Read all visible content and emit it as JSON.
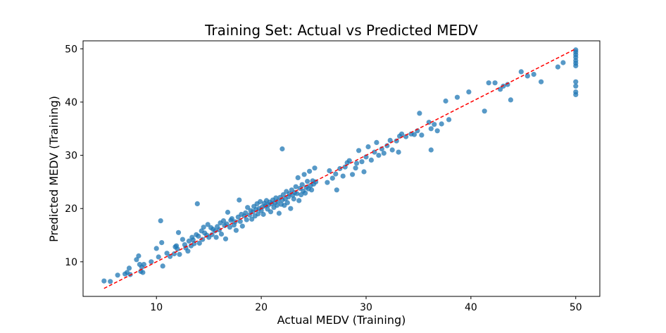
{
  "chart_data": {
    "type": "scatter",
    "title": "Training Set: Actual vs Predicted MEDV",
    "xlabel": "Actual MEDV (Training)",
    "ylabel": "Predicted MEDV (Training)",
    "xlim": [
      3.0,
      52.3
    ],
    "ylim": [
      3.5,
      51.5
    ],
    "xticks": [
      10,
      20,
      30,
      40,
      50
    ],
    "yticks": [
      10,
      20,
      30,
      40,
      50
    ],
    "grid": false,
    "legend": "none",
    "colors": {
      "points": "#1f77b4",
      "reference": "#ff0000"
    },
    "reference_line": {
      "style": "dashed",
      "x": [
        5,
        50
      ],
      "y": [
        5,
        50
      ]
    },
    "points": [
      [
        5.0,
        6.4
      ],
      [
        5.6,
        6.3
      ],
      [
        6.3,
        7.5
      ],
      [
        7.0,
        7.7
      ],
      [
        7.2,
        8.0
      ],
      [
        7.4,
        8.8
      ],
      [
        7.5,
        7.6
      ],
      [
        8.1,
        10.4
      ],
      [
        8.3,
        11.1
      ],
      [
        8.4,
        9.5
      ],
      [
        8.5,
        8.2
      ],
      [
        8.6,
        9.0
      ],
      [
        8.7,
        8.0
      ],
      [
        8.8,
        9.5
      ],
      [
        9.5,
        10.0
      ],
      [
        10.0,
        12.5
      ],
      [
        10.2,
        10.9
      ],
      [
        10.4,
        17.7
      ],
      [
        10.5,
        13.6
      ],
      [
        10.6,
        9.2
      ],
      [
        11.0,
        11.6
      ],
      [
        11.3,
        11.0
      ],
      [
        11.7,
        11.5
      ],
      [
        11.8,
        12.8
      ],
      [
        11.9,
        13.0
      ],
      [
        12.0,
        12.4
      ],
      [
        12.1,
        15.5
      ],
      [
        12.2,
        11.4
      ],
      [
        12.5,
        14.2
      ],
      [
        12.7,
        13.2
      ],
      [
        12.8,
        12.6
      ],
      [
        13.0,
        12.0
      ],
      [
        13.1,
        13.9
      ],
      [
        13.3,
        13.0
      ],
      [
        13.4,
        14.6
      ],
      [
        13.5,
        14.1
      ],
      [
        13.6,
        13.4
      ],
      [
        13.8,
        15.1
      ],
      [
        13.9,
        20.9
      ],
      [
        14.0,
        14.8
      ],
      [
        14.1,
        13.5
      ],
      [
        14.3,
        15.8
      ],
      [
        14.4,
        14.2
      ],
      [
        14.5,
        16.5
      ],
      [
        14.6,
        15.4
      ],
      [
        14.8,
        15.0
      ],
      [
        14.9,
        17.0
      ],
      [
        15.0,
        14.6
      ],
      [
        15.2,
        16.4
      ],
      [
        15.3,
        15.1
      ],
      [
        15.4,
        16.1
      ],
      [
        15.6,
        15.8
      ],
      [
        15.7,
        14.6
      ],
      [
        15.8,
        16.6
      ],
      [
        16.0,
        16.0
      ],
      [
        16.1,
        17.3
      ],
      [
        16.2,
        15.2
      ],
      [
        16.4,
        17.7
      ],
      [
        16.5,
        16.8
      ],
      [
        16.6,
        14.3
      ],
      [
        16.7,
        17.1
      ],
      [
        16.8,
        19.3
      ],
      [
        17.0,
        16.5
      ],
      [
        17.1,
        17.8
      ],
      [
        17.2,
        18.1
      ],
      [
        17.4,
        16.9
      ],
      [
        17.5,
        17.5
      ],
      [
        17.6,
        15.9
      ],
      [
        17.8,
        18.4
      ],
      [
        17.9,
        21.6
      ],
      [
        18.0,
        17.6
      ],
      [
        18.1,
        18.9
      ],
      [
        18.2,
        16.7
      ],
      [
        18.4,
        18.6
      ],
      [
        18.5,
        19.2
      ],
      [
        18.6,
        17.9
      ],
      [
        18.7,
        20.2
      ],
      [
        18.9,
        18.8
      ],
      [
        19.0,
        19.6
      ],
      [
        19.1,
        18.0
      ],
      [
        19.2,
        19.4
      ],
      [
        19.3,
        20.4
      ],
      [
        19.4,
        18.6
      ],
      [
        19.5,
        19.8
      ],
      [
        19.6,
        20.9
      ],
      [
        19.7,
        19.0
      ],
      [
        19.8,
        20.0
      ],
      [
        19.9,
        21.3
      ],
      [
        20.0,
        19.6
      ],
      [
        20.1,
        20.3
      ],
      [
        20.2,
        18.9
      ],
      [
        20.3,
        21.0
      ],
      [
        20.4,
        20.5
      ],
      [
        20.5,
        21.5
      ],
      [
        20.6,
        19.9
      ],
      [
        20.7,
        20.7
      ],
      [
        20.8,
        21.2
      ],
      [
        20.9,
        19.4
      ],
      [
        21.0,
        20.9
      ],
      [
        21.1,
        21.6
      ],
      [
        21.2,
        20.2
      ],
      [
        21.3,
        21.1
      ],
      [
        21.4,
        22.0
      ],
      [
        21.5,
        20.6
      ],
      [
        21.6,
        21.4
      ],
      [
        21.7,
        19.1
      ],
      [
        21.8,
        22.1
      ],
      [
        21.9,
        20.8
      ],
      [
        22.0,
        21.6
      ],
      [
        22.0,
        31.2
      ],
      [
        22.1,
        22.6
      ],
      [
        22.2,
        20.6
      ],
      [
        22.3,
        21.8
      ],
      [
        22.4,
        23.2
      ],
      [
        22.5,
        21.1
      ],
      [
        22.6,
        22.2
      ],
      [
        22.7,
        22.8
      ],
      [
        22.8,
        20.0
      ],
      [
        22.9,
        23.5
      ],
      [
        23.0,
        22.5
      ],
      [
        23.1,
        21.8
      ],
      [
        23.2,
        23.0
      ],
      [
        23.3,
        24.1
      ],
      [
        23.4,
        22.8
      ],
      [
        23.5,
        25.8
      ],
      [
        23.6,
        21.5
      ],
      [
        23.7,
        23.8
      ],
      [
        23.8,
        22.6
      ],
      [
        23.9,
        24.5
      ],
      [
        24.0,
        23.3
      ],
      [
        24.1,
        26.4
      ],
      [
        24.2,
        22.9
      ],
      [
        24.3,
        24.0
      ],
      [
        24.4,
        25.1
      ],
      [
        24.5,
        23.7
      ],
      [
        24.6,
        27.0
      ],
      [
        24.7,
        24.3
      ],
      [
        24.8,
        23.5
      ],
      [
        24.9,
        25.2
      ],
      [
        25.0,
        24.6
      ],
      [
        25.1,
        27.6
      ],
      [
        25.2,
        25.0
      ],
      [
        26.3,
        24.9
      ],
      [
        26.5,
        27.1
      ],
      [
        26.8,
        25.7
      ],
      [
        27.1,
        26.5
      ],
      [
        27.2,
        23.5
      ],
      [
        27.5,
        27.5
      ],
      [
        27.8,
        26.1
      ],
      [
        28.0,
        27.8
      ],
      [
        28.2,
        28.6
      ],
      [
        28.4,
        29.0
      ],
      [
        28.7,
        26.4
      ],
      [
        29.0,
        27.6
      ],
      [
        29.1,
        28.5
      ],
      [
        29.3,
        30.9
      ],
      [
        29.6,
        28.8
      ],
      [
        29.8,
        26.9
      ],
      [
        30.0,
        29.7
      ],
      [
        30.2,
        31.6
      ],
      [
        30.5,
        29.1
      ],
      [
        30.8,
        30.6
      ],
      [
        31.0,
        32.4
      ],
      [
        31.2,
        30.0
      ],
      [
        31.5,
        31.2
      ],
      [
        31.7,
        30.4
      ],
      [
        32.0,
        31.8
      ],
      [
        32.3,
        32.8
      ],
      [
        32.5,
        31.0
      ],
      [
        32.9,
        32.7
      ],
      [
        33.1,
        30.6
      ],
      [
        33.2,
        33.6
      ],
      [
        33.4,
        34.0
      ],
      [
        33.8,
        33.5
      ],
      [
        34.3,
        34.0
      ],
      [
        34.6,
        33.9
      ],
      [
        34.9,
        34.6
      ],
      [
        35.1,
        37.9
      ],
      [
        35.3,
        33.8
      ],
      [
        36.0,
        36.2
      ],
      [
        36.2,
        31.0
      ],
      [
        36.2,
        35.0
      ],
      [
        36.5,
        35.8
      ],
      [
        36.8,
        34.6
      ],
      [
        37.2,
        35.9
      ],
      [
        37.6,
        40.2
      ],
      [
        37.9,
        36.7
      ],
      [
        38.7,
        40.9
      ],
      [
        39.8,
        41.9
      ],
      [
        41.3,
        38.3
      ],
      [
        41.7,
        43.6
      ],
      [
        42.3,
        43.6
      ],
      [
        42.8,
        42.4
      ],
      [
        43.1,
        43.0
      ],
      [
        43.5,
        43.3
      ],
      [
        43.8,
        40.4
      ],
      [
        44.8,
        45.7
      ],
      [
        45.4,
        44.9
      ],
      [
        46.0,
        45.2
      ],
      [
        46.7,
        43.8
      ],
      [
        48.3,
        46.6
      ],
      [
        48.8,
        47.4
      ],
      [
        50.0,
        41.4
      ],
      [
        50.0,
        41.9
      ],
      [
        50.0,
        43.0
      ],
      [
        50.0,
        43.8
      ],
      [
        50.0,
        46.8
      ],
      [
        50.0,
        47.3
      ],
      [
        50.0,
        47.8
      ],
      [
        50.0,
        48.4
      ],
      [
        50.0,
        48.9
      ],
      [
        50.0,
        49.4
      ],
      [
        50.0,
        49.8
      ]
    ]
  }
}
